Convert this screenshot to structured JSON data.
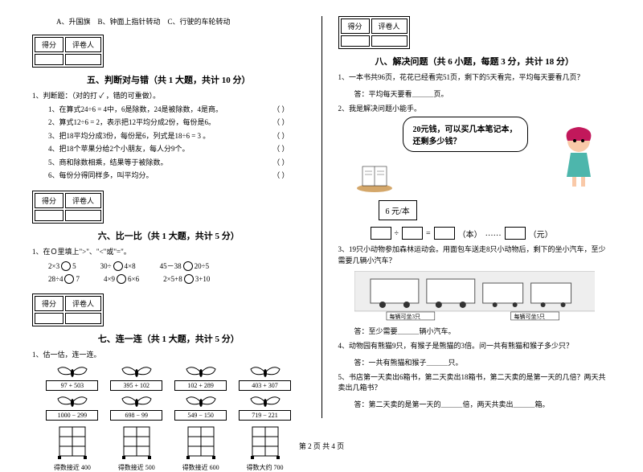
{
  "top_options": {
    "a": "A、升国旗",
    "b": "B、钟面上指针转动",
    "c": "C、行驶的车轮转动"
  },
  "score_header": {
    "col1": "得分",
    "col2": "评卷人"
  },
  "section5": {
    "title": "五、判断对与错（共 1 大题，共计 10 分）",
    "lead": "1、判断题：（对的打 ✓ ，错的可重做）。",
    "items": [
      "1、在算式24÷6 = 4中，6是除数，24是被除数，4是商。",
      "2、算式12÷6 = 2，表示把12平均分成2份，每份是6。",
      "3、把18平均分成3份，每份是6，列式是18÷6 = 3 。",
      "4、把18个苹果分给2个小朋友，每人分9个。",
      "5、商和除数相乘，结果等于被除数。",
      "6、每份分得同样多，叫平均分。"
    ],
    "paren": "（      ）"
  },
  "section6": {
    "title": "六、比一比（共 1 大题，共计 5 分）",
    "lead": "1、在Ｏ里填上\">\"、\"<\"或\"=\"。",
    "row1": [
      "2×3",
      "5",
      "30÷",
      "4×8",
      "45－38",
      "20÷5"
    ],
    "row2": [
      "28÷4",
      "7",
      "4×9",
      "6×6",
      "2×5+8",
      "3+10"
    ]
  },
  "section7": {
    "title": "七、连一连（共 1 大题，共计 5 分）",
    "lead": "1、估一估，连一连。",
    "butterflies_top": [
      "97 + 503",
      "395 + 102",
      "102 + 289",
      "403 + 307"
    ],
    "butterflies_bot": [
      "1000 − 299",
      "698 − 99",
      "549 − 150",
      "719 − 221"
    ],
    "cabinets": [
      "得数接近 400",
      "得数接近 500",
      "得数接近 600",
      "得数大约 700"
    ]
  },
  "section8": {
    "title": "八、解决问题（共 6 小题，每题 3 分，共计 18 分）",
    "q1": "1、一本书共96页，花花已经看完51页，剩下的5天看完，平均每天要看几页？",
    "q1_ans": "答：平均每天要看＿＿＿页。",
    "q2": "2、我是解决问题小能手。",
    "bubble_line1": "20元钱，可以买几本笔记本，",
    "bubble_line2": "还剩多少钱？",
    "price": "6 元/本",
    "eq_parts": {
      "div": "÷",
      "eq": "=",
      "ben": "（本）",
      "dots": "……",
      "yuan": "（元）"
    },
    "q3": "3、19只小动物参加森林运动会。用面包车送走8只小动物后，剩下的坐小汽车，至少需要几辆小汽车？",
    "q3_ans": "答：至少需要＿＿＿辆小汽车。",
    "q4": "4、动物园有熊猫9只，有猴子是熊猫的3倍。问一共有熊猫和猴子多少只？",
    "q4_ans": "答：一共有熊猫和猴子＿＿＿只。",
    "q5": "5、书店第一天卖出6箱书，第二天卖出18箱书，第二天卖的是第一天的几倍？两天共卖出几箱书？",
    "q5_ans": "答：第二天卖的是第一天的＿＿＿倍，两天共卖出＿＿＿箱。",
    "bus_labels": {
      "left": "每辆可坐3只",
      "right": "每辆可坐5只"
    }
  },
  "footer": "第 2 页 共 4 页"
}
